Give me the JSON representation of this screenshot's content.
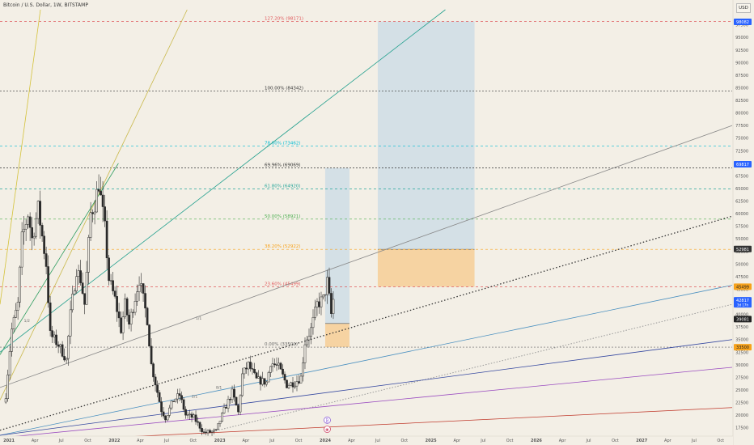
{
  "header": {
    "symbol_title": "Bitcoin / U.S. Dollar, 1W, BITSTAMP",
    "currency_button": "USD"
  },
  "colors": {
    "background": "#f3efe6",
    "candle": "#2a2a2a",
    "fib_red": "#e0585b",
    "fib_black": "#333333",
    "fib_teal": "#26a69a",
    "fib_cyan": "#00bcd4",
    "fib_green": "#4caf50",
    "fib_orange": "#f7a21b",
    "target_zone": "#c9dbe6",
    "stop_zone": "#f7c98b",
    "price_now": "#2962ff"
  },
  "chart_data": {
    "type": "candlestick",
    "title": "Bitcoin / U.S. Dollar, 1W, BITSTAMP",
    "y_axis": {
      "ticks": [
        17500,
        20000,
        22500,
        25000,
        27500,
        30000,
        32500,
        35000,
        37500,
        40000,
        42500,
        45000,
        47500,
        50000,
        52500,
        55000,
        57500,
        60000,
        62500,
        65000,
        67500,
        70000,
        72500,
        75000,
        77500,
        80000,
        82500,
        85000,
        87500,
        90000,
        92500,
        95000,
        97500
      ],
      "range": [
        16000,
        100500
      ]
    },
    "x_axis": {
      "ticks": [
        "2021",
        "Apr",
        "Jul",
        "Oct",
        "2022",
        "Apr",
        "Jul",
        "Oct",
        "2023",
        "Apr",
        "Jul",
        "Oct",
        "2024",
        "Apr",
        "Jul",
        "Oct",
        "2025",
        "Apr",
        "Jul",
        "Oct",
        "2026",
        "Apr",
        "Jul",
        "Oct",
        "2027",
        "Apr",
        "Jul",
        "Oct"
      ],
      "range": [
        "2020-12-01",
        "2027-11-10"
      ]
    },
    "weekly_close_path": [
      [
        "2020-12-21",
        24000
      ],
      [
        "2021-01-04",
        33000
      ],
      [
        "2021-01-11",
        37000
      ],
      [
        "2021-02-01",
        42000
      ],
      [
        "2021-02-15",
        55000
      ],
      [
        "2021-03-08",
        60000
      ],
      [
        "2021-03-22",
        55000
      ],
      [
        "2021-04-12",
        61000
      ],
      [
        "2021-05-10",
        50000
      ],
      [
        "2021-05-24",
        36000
      ],
      [
        "2021-06-21",
        34000
      ],
      [
        "2021-07-19",
        31000
      ],
      [
        "2021-08-02",
        40000
      ],
      [
        "2021-08-23",
        49000
      ],
      [
        "2021-09-06",
        47000
      ],
      [
        "2021-09-20",
        42000
      ],
      [
        "2021-10-11",
        60000
      ],
      [
        "2021-10-25",
        62000
      ],
      [
        "2021-11-08",
        66000
      ],
      [
        "2021-11-29",
        57000
      ],
      [
        "2021-12-13",
        47000
      ],
      [
        "2022-01-03",
        43000
      ],
      [
        "2022-01-24",
        37000
      ],
      [
        "2022-02-07",
        42000
      ],
      [
        "2022-02-21",
        38000
      ],
      [
        "2022-03-28",
        47000
      ],
      [
        "2022-04-25",
        39000
      ],
      [
        "2022-05-09",
        30000
      ],
      [
        "2022-06-13",
        21000
      ],
      [
        "2022-06-27",
        19500
      ],
      [
        "2022-07-25",
        23000
      ],
      [
        "2022-08-15",
        24000
      ],
      [
        "2022-09-05",
        20000
      ],
      [
        "2022-10-03",
        19500
      ],
      [
        "2022-11-07",
        16500
      ],
      [
        "2022-12-19",
        16800
      ],
      [
        "2023-01-16",
        21000
      ],
      [
        "2023-02-13",
        24500
      ],
      [
        "2023-03-06",
        20500
      ],
      [
        "2023-03-20",
        28000
      ],
      [
        "2023-04-10",
        30000
      ],
      [
        "2023-05-08",
        27000
      ],
      [
        "2023-06-12",
        26500
      ],
      [
        "2023-06-26",
        30500
      ],
      [
        "2023-07-24",
        29500
      ],
      [
        "2023-08-21",
        26000
      ],
      [
        "2023-09-18",
        26500
      ],
      [
        "2023-10-09",
        27500
      ],
      [
        "2023-10-23",
        34500
      ],
      [
        "2023-11-13",
        37000
      ],
      [
        "2023-12-04",
        42000
      ],
      [
        "2023-12-25",
        43000
      ],
      [
        "2024-01-08",
        46500
      ],
      [
        "2024-01-22",
        40000
      ],
      [
        "2024-01-29",
        42900
      ]
    ],
    "fib_levels": [
      {
        "label": "127.20% (98171)",
        "value": 98171,
        "color": "#e0585b",
        "dash": "3,3"
      },
      {
        "label": "100.00% (84342)",
        "value": 84342,
        "color": "#333333",
        "dash": "2,2"
      },
      {
        "label": "78.60% (73462)",
        "value": 73462,
        "color": "#00bcd4",
        "dash": "3,3"
      },
      {
        "label": "69.96% (69069)",
        "value": 69069,
        "color": "#333333",
        "dash": "2,2"
      },
      {
        "label": "61.80% (64920)",
        "value": 64920,
        "color": "#26a69a",
        "dash": "3,3"
      },
      {
        "label": "50.00% (58921)",
        "value": 58921,
        "color": "#4caf50",
        "dash": "3,3"
      },
      {
        "label": "38.20% (52922)",
        "value": 52922,
        "color": "#f7a21b",
        "dash": "3,3"
      },
      {
        "label": "23.60% (45499)",
        "value": 45499,
        "color": "#e0585b",
        "dash": "3,3"
      },
      {
        "label": "0.00% (33500)",
        "value": 33500,
        "color": "#666666",
        "dash": "2,2"
      }
    ],
    "trendlines": [
      {
        "name": "fan-yellow",
        "color": "#d4c23a",
        "width": 0.8,
        "dash": "",
        "from": [
          "2020-12-01",
          42000
        ],
        "to": [
          "2021-04-20",
          100500
        ]
      },
      {
        "name": "fan-olive",
        "color": "#c9b84a",
        "width": 0.8,
        "dash": "",
        "from": [
          "2020-12-01",
          23000
        ],
        "to": [
          "2022-09-10",
          100500
        ]
      },
      {
        "name": "fan-green",
        "color": "#2e9d60",
        "width": 0.8,
        "dash": "",
        "from": [
          "2020-12-01",
          32000
        ],
        "to": [
          "2022-01-15",
          70000
        ]
      },
      {
        "name": "fan-teal",
        "color": "#23a08e",
        "width": 0.8,
        "dash": "",
        "from": [
          "2020-12-01",
          32500
        ],
        "to": [
          "2025-02-20",
          100500
        ]
      },
      {
        "name": "gray-channel",
        "color": "#888888",
        "width": 0.8,
        "dash": "",
        "from": [
          "2020-12-01",
          25500
        ],
        "to": [
          "2027-11-10",
          77500
        ]
      },
      {
        "name": "dotted-support",
        "color": "#333333",
        "width": 1.3,
        "dash": "1.5,2.5",
        "from": [
          "2020-12-01",
          17000
        ],
        "to": [
          "2027-11-10",
          59500
        ]
      },
      {
        "name": "blue-channel",
        "color": "#4a90c0",
        "width": 0.8,
        "dash": "",
        "from": [
          "2020-12-01",
          16000
        ],
        "to": [
          "2027-11-10",
          45800
        ]
      },
      {
        "name": "gray-dotted",
        "color": "#999999",
        "width": 1.0,
        "dash": "1.5,2",
        "from": [
          "2022-11-20",
          16500
        ],
        "to": [
          "2027-11-10",
          42000
        ]
      },
      {
        "name": "navy-line",
        "color": "#3548a0",
        "width": 0.8,
        "dash": "",
        "from": [
          "2020-12-01",
          16000
        ],
        "to": [
          "2027-11-10",
          35000
        ]
      },
      {
        "name": "purple-line",
        "color": "#9a4bc0",
        "width": 0.8,
        "dash": "",
        "from": [
          "2020-12-01",
          15500
        ],
        "to": [
          "2027-11-10",
          29500
        ]
      },
      {
        "name": "red-line",
        "color": "#c0392b",
        "width": 0.8,
        "dash": "",
        "from": [
          "2021-12-01",
          15500
        ],
        "to": [
          "2027-11-10",
          21500
        ]
      }
    ],
    "channel_labels": [
      {
        "text": "1/2",
        "date": "2021-02-22",
        "value": 38500
      },
      {
        "text": "1/1",
        "date": "2022-10-10",
        "value": 39000
      },
      {
        "text": "8/1",
        "date": "2022-12-19",
        "value": 25200
      },
      {
        "text": "2/1",
        "date": "2022-09-26",
        "value": 23500
      }
    ],
    "position_boxes": [
      {
        "name": "first-target-zone",
        "from": "2024-01-01",
        "to": "2024-03-25",
        "top": 69069,
        "bottom": 38200,
        "color": "#c9dbe6"
      },
      {
        "name": "first-stop-zone",
        "from": "2024-01-01",
        "to": "2024-03-25",
        "top": 38200,
        "bottom": 33500,
        "color": "#f7c98b"
      },
      {
        "name": "second-target-zone",
        "from": "2024-07-01",
        "to": "2025-06-01",
        "top": 98171,
        "bottom": 52922,
        "color": "#c9dbe6"
      },
      {
        "name": "second-stop-zone",
        "from": "2024-07-01",
        "to": "2025-06-01",
        "top": 52922,
        "bottom": 45499,
        "color": "#f7c98b"
      }
    ],
    "price_tags": [
      {
        "label": "98082",
        "value": 98082,
        "bg": "#2962ff",
        "fg": "#ffffff"
      },
      {
        "label": "69817",
        "value": 69817,
        "bg": "#2962ff",
        "fg": "#ffffff"
      },
      {
        "label": "52981",
        "value": 52981,
        "bg": "#333333",
        "fg": "#ffffff"
      },
      {
        "label": "45499",
        "value": 45499,
        "bg": "#f7a21b",
        "fg": "#222222"
      },
      {
        "label": "42817",
        "value": 42817,
        "bg": "#2962ff",
        "fg": "#ffffff",
        "sublabel": "3d 17h"
      },
      {
        "label": "39081",
        "value": 39081,
        "bg": "#222222",
        "fg": "#ffffff"
      },
      {
        "label": "33500",
        "value": 33500,
        "bg": "#f7a21b",
        "fg": "#222222"
      }
    ],
    "event_markers": [
      {
        "text": "₿",
        "date": "2024-01-08",
        "value": 19000,
        "color": "#8a5cd8"
      },
      {
        "text": "◉",
        "date": "2024-01-08",
        "value": 17200,
        "color": "#d04a6a"
      }
    ]
  }
}
